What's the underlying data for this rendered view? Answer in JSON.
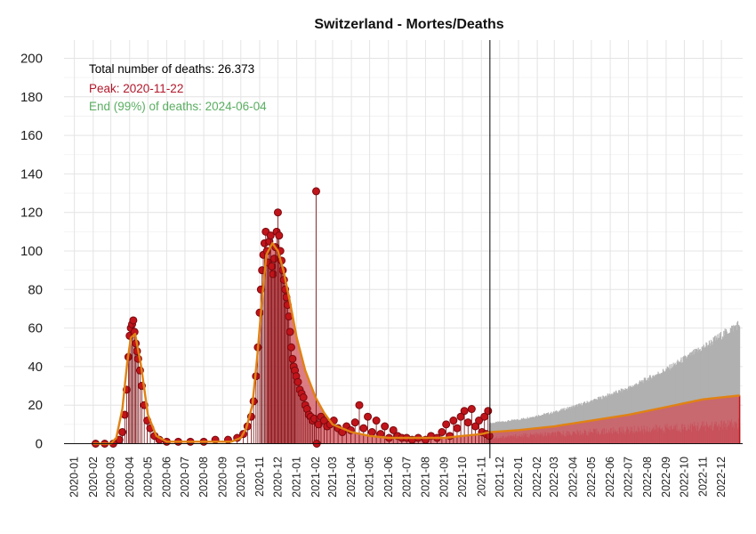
{
  "chart_data": {
    "type": "line",
    "title": "Switzerland - Mortes/Deaths",
    "xlabel": "",
    "ylabel": "",
    "ylim": [
      0,
      200
    ],
    "y_ticks": [
      "0",
      "20",
      "40",
      "60",
      "80",
      "100",
      "120",
      "140",
      "160",
      "180",
      "200"
    ],
    "x_ticks": [
      "2020-01",
      "2020-02",
      "2020-03",
      "2020-04",
      "2020-05",
      "2020-06",
      "2020-07",
      "2020-08",
      "2020-09",
      "2020-10",
      "2020-11",
      "2020-12",
      "2021-01",
      "2021-02",
      "2021-03",
      "2021-04",
      "2021-05",
      "2021-06",
      "2021-07",
      "2021-08",
      "2021-09",
      "2021-10",
      "2021-11",
      "2021-12",
      "2022-01",
      "2022-02",
      "2022-03",
      "2022-04",
      "2022-05",
      "2022-06",
      "2022-07",
      "2022-08",
      "2022-09",
      "2022-10",
      "2022-11",
      "2022-12"
    ],
    "xlim": [
      "2019-12-15",
      "2023-01-05"
    ],
    "grid": true,
    "cutoff_date": "2021-11-15",
    "annotations": [
      {
        "text": "Total number of deaths: 26.373",
        "color": "#000000"
      },
      {
        "text": "Peak: 2020-11-22",
        "color": "#b2182b"
      },
      {
        "text": "End (99%) of deaths: 2024-06-04",
        "color": "#5aae61"
      }
    ],
    "colors": {
      "observed_points": "#c0141b",
      "observed_outline": "#7a0a0e",
      "fitted_line": "#e08214",
      "fitted_area": "#d0505a",
      "forecast_upper": "#b0b0b0",
      "forecast_lower_area": "#b04a58",
      "cutoff_line": "#000000"
    },
    "series": [
      {
        "name": "",
        "kind": "fitted-model",
        "x": [
          "2020-02-01",
          "2020-03-01",
          "2020-03-10",
          "2020-03-20",
          "2020-03-28",
          "2020-04-03",
          "2020-04-10",
          "2020-04-20",
          "2020-05-01",
          "2020-05-15",
          "2020-06-01",
          "2020-08-01",
          "2020-09-15",
          "2020-10-01",
          "2020-10-10",
          "2020-10-20",
          "2020-10-28",
          "2020-11-05",
          "2020-11-12",
          "2020-11-22",
          "2020-12-01",
          "2020-12-10",
          "2020-12-20",
          "2021-01-01",
          "2021-01-15",
          "2021-02-01",
          "2021-02-15",
          "2021-03-01",
          "2021-04-01",
          "2021-05-01",
          "2021-06-01",
          "2021-07-01",
          "2021-08-01",
          "2021-09-01",
          "2021-10-01",
          "2021-11-01",
          "2021-11-15",
          "2022-01-01",
          "2022-03-01",
          "2022-05-01",
          "2022-07-01",
          "2022-09-01",
          "2022-11-01",
          "2022-12-31"
        ],
        "values": [
          0,
          0,
          3,
          18,
          42,
          55,
          57,
          40,
          15,
          4,
          1,
          1,
          1,
          3,
          8,
          20,
          45,
          75,
          98,
          104,
          100,
          90,
          75,
          55,
          38,
          24,
          16,
          10,
          6,
          4,
          3,
          3,
          3,
          3,
          4,
          5,
          6,
          7,
          9,
          12,
          15,
          19,
          23,
          25
        ]
      },
      {
        "name": "",
        "kind": "forecast-upper",
        "x": [
          "2021-11-15",
          "2022-01-01",
          "2022-03-01",
          "2022-05-01",
          "2022-07-01",
          "2022-09-01",
          "2022-11-01",
          "2022-12-31"
        ],
        "values": [
          11,
          13,
          17,
          23,
          30,
          40,
          52,
          65
        ]
      },
      {
        "name": "",
        "kind": "forecast-lower",
        "x": [
          "2021-11-15",
          "2022-01-01",
          "2022-03-01",
          "2022-05-01",
          "2022-07-01",
          "2022-09-01",
          "2022-11-01",
          "2022-12-31"
        ],
        "values": [
          3,
          4,
          5,
          6,
          7,
          8,
          9,
          10
        ]
      },
      {
        "name": "",
        "kind": "observed-daily",
        "x": [
          "2020-02-05",
          "2020-02-20",
          "2020-03-05",
          "2020-03-15",
          "2020-03-20",
          "2020-03-24",
          "2020-03-27",
          "2020-03-30",
          "2020-04-01",
          "2020-04-03",
          "2020-04-05",
          "2020-04-07",
          "2020-04-09",
          "2020-04-11",
          "2020-04-13",
          "2020-04-15",
          "2020-04-18",
          "2020-04-21",
          "2020-04-25",
          "2020-04-30",
          "2020-05-05",
          "2020-05-12",
          "2020-05-20",
          "2020-06-01",
          "2020-06-20",
          "2020-07-10",
          "2020-08-01",
          "2020-08-20",
          "2020-09-10",
          "2020-09-25",
          "2020-10-05",
          "2020-10-12",
          "2020-10-18",
          "2020-10-22",
          "2020-10-26",
          "2020-10-29",
          "2020-11-01",
          "2020-11-03",
          "2020-11-05",
          "2020-11-07",
          "2020-11-09",
          "2020-11-11",
          "2020-11-13",
          "2020-11-15",
          "2020-11-17",
          "2020-11-19",
          "2020-11-21",
          "2020-11-23",
          "2020-11-25",
          "2020-11-27",
          "2020-11-29",
          "2020-12-01",
          "2020-12-03",
          "2020-12-05",
          "2020-12-07",
          "2020-12-09",
          "2020-12-11",
          "2020-12-13",
          "2020-12-15",
          "2020-12-17",
          "2020-12-19",
          "2020-12-21",
          "2020-12-23",
          "2020-12-25",
          "2020-12-27",
          "2020-12-29",
          "2020-12-31",
          "2021-01-03",
          "2021-01-06",
          "2021-01-09",
          "2021-01-12",
          "2021-01-15",
          "2021-01-18",
          "2021-01-21",
          "2021-01-24",
          "2021-01-27",
          "2021-01-30",
          "2021-02-02",
          "2021-02-03",
          "2021-02-06",
          "2021-02-10",
          "2021-02-15",
          "2021-02-20",
          "2021-02-25",
          "2021-03-03",
          "2021-03-10",
          "2021-03-17",
          "2021-03-24",
          "2021-03-31",
          "2021-04-07",
          "2021-04-14",
          "2021-04-21",
          "2021-04-28",
          "2021-05-05",
          "2021-05-12",
          "2021-05-19",
          "2021-05-26",
          "2021-06-02",
          "2021-06-09",
          "2021-06-16",
          "2021-06-23",
          "2021-07-01",
          "2021-07-10",
          "2021-07-20",
          "2021-08-01",
          "2021-08-10",
          "2021-08-20",
          "2021-08-28",
          "2021-09-04",
          "2021-09-10",
          "2021-09-16",
          "2021-09-22",
          "2021-09-28",
          "2021-10-04",
          "2021-10-10",
          "2021-10-16",
          "2021-10-22",
          "2021-10-28",
          "2021-11-02",
          "2021-11-06",
          "2021-11-09",
          "2021-11-12",
          "2021-11-14"
        ],
        "values": [
          0,
          0,
          0,
          2,
          6,
          15,
          28,
          45,
          56,
          60,
          62,
          64,
          58,
          52,
          48,
          44,
          38,
          30,
          20,
          12,
          8,
          4,
          2,
          1,
          1,
          1,
          1,
          2,
          2,
          3,
          5,
          9,
          14,
          22,
          35,
          50,
          68,
          80,
          90,
          98,
          104,
          110,
          100,
          94,
          105,
          108,
          92,
          88,
          96,
          102,
          110,
          120,
          108,
          100,
          95,
          90,
          85,
          80,
          76,
          72,
          66,
          58,
          50,
          44,
          40,
          38,
          35,
          32,
          28,
          26,
          24,
          20,
          18,
          15,
          14,
          12,
          13,
          131,
          0,
          10,
          14,
          12,
          9,
          10,
          12,
          8,
          6,
          9,
          7,
          11,
          20,
          8,
          14,
          6,
          12,
          5,
          9,
          3,
          7,
          4,
          3,
          3,
          2,
          3,
          2,
          4,
          3,
          6,
          10,
          4,
          12,
          8,
          14,
          17,
          11,
          18,
          9,
          12,
          6,
          14,
          5,
          17,
          4
        ]
      }
    ]
  }
}
